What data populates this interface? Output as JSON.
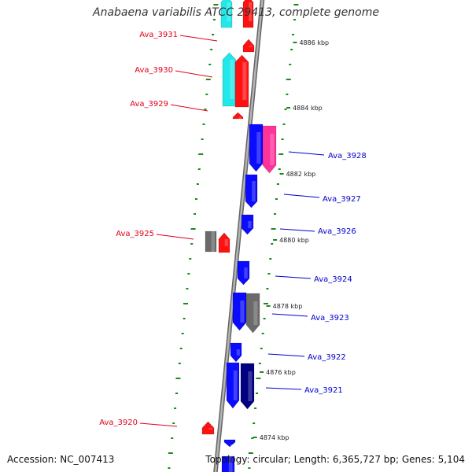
{
  "title": "Anabaena variabilis ATCC 29413, complete genome",
  "footer": {
    "accession": "Accession: NC_007413",
    "summary": "Topology: circular; Length: 6,365,727 bp; Genes: 5,104"
  },
  "colors": {
    "forward_label": "#e0001a",
    "reverse_label": "#0000cc",
    "ruler": "#1a8a1a",
    "backbone": "#8c8c8c"
  },
  "kbp_ticks": [
    "4886 kbp",
    "4884 kbp",
    "4882 kbp",
    "4880 kbp",
    "4878 kbp",
    "4876 kbp",
    "4874 kbp"
  ],
  "genes": [
    {
      "id": "Ava_3931",
      "strand": "forward"
    },
    {
      "id": "Ava_3930",
      "strand": "forward"
    },
    {
      "id": "Ava_3929",
      "strand": "forward"
    },
    {
      "id": "Ava_3928",
      "strand": "reverse"
    },
    {
      "id": "Ava_3927",
      "strand": "reverse"
    },
    {
      "id": "Ava_3926",
      "strand": "reverse"
    },
    {
      "id": "Ava_3925",
      "strand": "forward"
    },
    {
      "id": "Ava_3924",
      "strand": "reverse"
    },
    {
      "id": "Ava_3923",
      "strand": "reverse"
    },
    {
      "id": "Ava_3922",
      "strand": "reverse"
    },
    {
      "id": "Ava_3921",
      "strand": "reverse"
    },
    {
      "id": "Ava_3920",
      "strand": "forward"
    }
  ]
}
